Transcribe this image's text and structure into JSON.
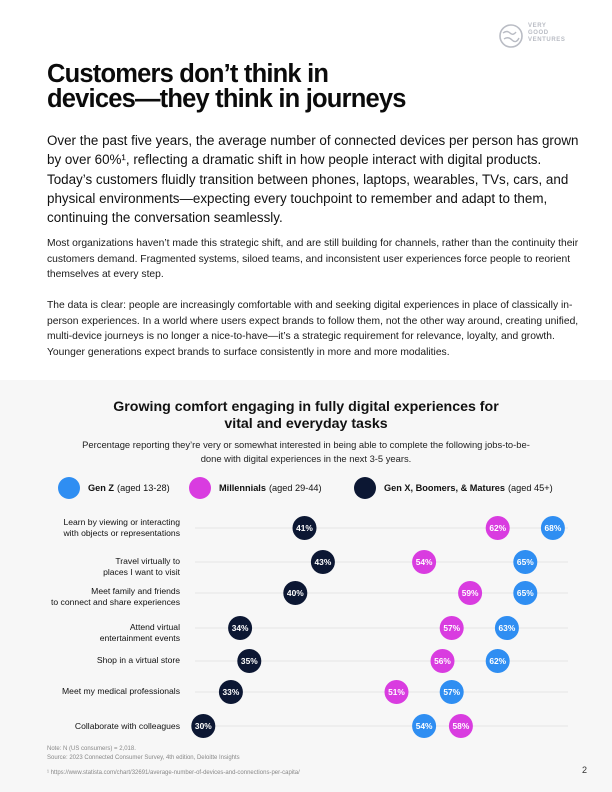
{
  "brand": {
    "logo_lines": [
      "VERY",
      "GOOD",
      "VENTURES"
    ]
  },
  "heading": {
    "line1": "Customers don’t think in",
    "line2": "devices—they think in journeys"
  },
  "lead": "Over the past five years, the average number of connected devices per person has grown by over 60%¹, reflecting a dramatic shift in how people interact with digital products. Today’s customers fluidly transition between phones, laptops, wearables, TVs, cars, and physical environments—expecting every touchpoint to remember and adapt to them, continuing the conversation seamlessly.",
  "paragraphs": [
    "Most organizations haven’t made this strategic shift, and are still building for channels, rather than the continuity their customers demand. Fragmented systems, siloed teams, and inconsistent user experiences force people to reorient themselves at every step.",
    "The data is clear: people are increasingly comfortable with and seeking digital experiences in place of classically in-person experiences. In a world where users expect brands to follow them, not the other way around, creating unified, multi-device journeys is no longer a nice-to-have—it’s a strategic requirement for relevance, loyalty, and growth. Younger generations expect brands to surface consistently in more and more modalities."
  ],
  "legend": [
    {
      "name": "Gen Z",
      "detail": "(aged 13-28)",
      "color": "#2f8ef2"
    },
    {
      "name": "Millennials",
      "detail": "(aged 29-44)",
      "color": "#d93ce0"
    },
    {
      "name": "Gen X, Boomers, & Matures",
      "detail": "(aged 45+)",
      "color": "#0c1733"
    }
  ],
  "chart_data": {
    "type": "scatter",
    "title": "Growing comfort engaging in fully digital experiences for vital and everyday tasks",
    "subtitle": "Percentage reporting they’re very or somewhat interested in being able to complete the following jobs-to-be-done with digital experiences in the next 3-5 years.",
    "categories": [
      [
        "Learn by viewing or interacting",
        "with objects or representations"
      ],
      [
        "Travel virtually to",
        "places I want to visit"
      ],
      [
        "Meet family and friends",
        "to connect and share experiences"
      ],
      [
        "Attend virtual",
        "entertainment events"
      ],
      [
        "Shop in a virtual store"
      ],
      [
        "Meet my medical professionals"
      ],
      [
        "Collaborate with colleagues"
      ]
    ],
    "series": [
      {
        "name": "Gen Z",
        "color": "#2f8ef2",
        "values": [
          68,
          65,
          65,
          63,
          62,
          57,
          54
        ]
      },
      {
        "name": "Millennials",
        "color": "#d93ce0",
        "values": [
          62,
          54,
          59,
          57,
          56,
          51,
          58
        ]
      },
      {
        "name": "Gen X, Boomers, & Matures",
        "color": "#0c1733",
        "values": [
          41,
          43,
          40,
          34,
          35,
          33,
          30
        ]
      }
    ],
    "value_suffix": "%",
    "grid": "horizontal"
  },
  "notes": {
    "n": "Note: N (US consumers) = 2,018.",
    "source": "Source: 2023 Connected Consumer Survey, 4th edition, Deloitte Insights",
    "footnote": "¹ https://www.statista.com/chart/32691/average-number-of-devices-and-connections-per-capita/"
  },
  "page_number": "2"
}
